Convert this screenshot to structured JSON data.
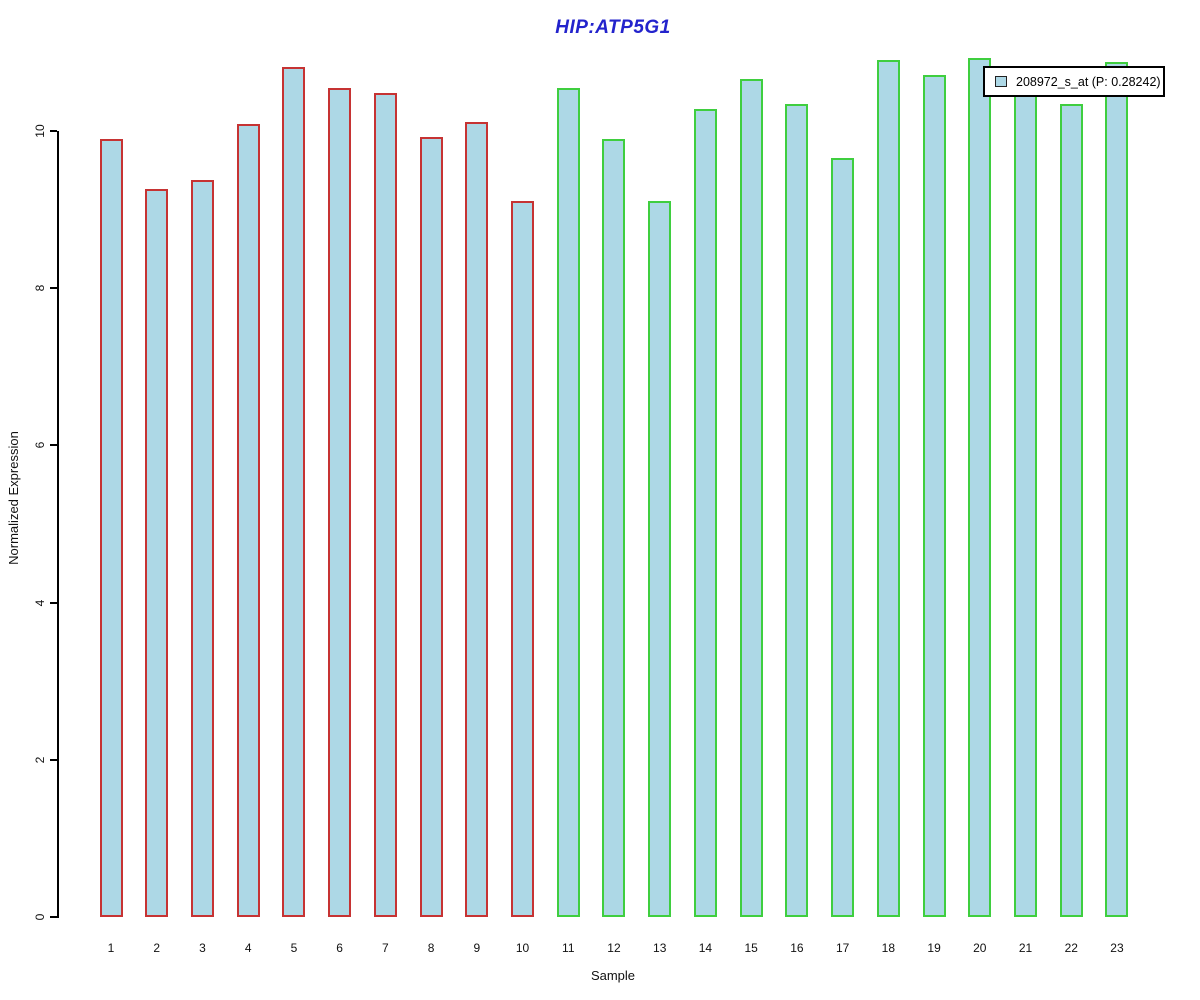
{
  "chart_data": {
    "type": "bar",
    "title": "HIP:ATP5G1",
    "xlabel": "Sample",
    "ylabel": "Normalized Expression",
    "categories": [
      "1",
      "2",
      "3",
      "4",
      "5",
      "6",
      "7",
      "8",
      "9",
      "10",
      "11",
      "12",
      "13",
      "14",
      "15",
      "16",
      "17",
      "18",
      "19",
      "20",
      "21",
      "22",
      "23"
    ],
    "values": [
      9.9,
      9.26,
      9.38,
      10.09,
      10.81,
      10.55,
      10.48,
      9.92,
      10.11,
      9.11,
      10.55,
      9.9,
      9.11,
      10.28,
      10.66,
      10.34,
      9.66,
      10.9,
      10.71,
      10.93,
      10.5,
      10.34,
      10.88
    ],
    "ylim": [
      0,
      11
    ],
    "yticks": [
      0,
      2,
      4,
      6,
      8,
      10
    ],
    "grid": false,
    "bar_fill": "#ADD8E6",
    "groups": [
      {
        "from": 1,
        "to": 10,
        "border_color": "#C63333"
      },
      {
        "from": 11,
        "to": 23,
        "border_color": "#3FCE3F"
      }
    ],
    "title_color": "#2323CC",
    "legend": {
      "label": "208972_s_at (P: 0.28242)",
      "swatch_fill": "#ADD8E6",
      "position": "top-right"
    }
  }
}
